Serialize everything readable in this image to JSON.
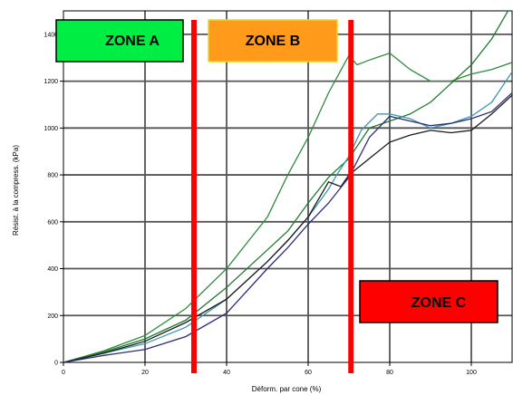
{
  "chart_data": {
    "type": "line",
    "xlabel": "Déform. par cone (%)",
    "ylabel": "Résist. à la compress. (kPa)",
    "xlim": [
      0,
      110
    ],
    "ylim": [
      0,
      1500
    ],
    "x_ticks": [
      0,
      20,
      40,
      60,
      80,
      100
    ],
    "x_tick_labels": [
      "0",
      "20",
      "40",
      "60",
      "80",
      "100"
    ],
    "y_ticks": [
      0,
      200,
      400,
      600,
      800,
      1000,
      1200,
      1400
    ],
    "y_tick_labels": [
      "0",
      "200",
      "400",
      "600",
      "800",
      "1000",
      "1200",
      "1400"
    ],
    "grid": true,
    "series": [
      {
        "color": "#2e8b3a",
        "x": [
          0,
          10,
          20,
          30,
          40,
          45,
          50,
          55,
          60,
          65,
          70,
          72,
          75,
          80,
          85,
          90,
          95,
          100,
          105,
          110
        ],
        "y": [
          0,
          50,
          115,
          230,
          400,
          510,
          620,
          800,
          960,
          1150,
          1310,
          1270,
          1290,
          1320,
          1250,
          1200,
          1200,
          1230,
          1250,
          1280
        ]
      },
      {
        "color": "#1f7a2e",
        "x": [
          0,
          10,
          20,
          30,
          40,
          50,
          55,
          60,
          65,
          70,
          75,
          80,
          85,
          90,
          95,
          100,
          105,
          110
        ],
        "y": [
          0,
          45,
          100,
          180,
          320,
          480,
          560,
          680,
          790,
          870,
          1000,
          1030,
          1060,
          1110,
          1190,
          1270,
          1380,
          1530
        ]
      },
      {
        "color": "#3a9aa8",
        "x": [
          0,
          10,
          20,
          30,
          40,
          50,
          55,
          60,
          65,
          67,
          70,
          73,
          77,
          80,
          85,
          90,
          95,
          100,
          105,
          110
        ],
        "y": [
          0,
          40,
          80,
          150,
          270,
          430,
          520,
          620,
          740,
          800,
          880,
          990,
          1060,
          1060,
          1040,
          1000,
          1020,
          1050,
          1110,
          1240
        ]
      },
      {
        "color": "#1a1a1a",
        "x": [
          0,
          10,
          20,
          30,
          40,
          50,
          55,
          60,
          65,
          68,
          70,
          75,
          80,
          85,
          90,
          95,
          100,
          105,
          110
        ],
        "y": [
          0,
          40,
          90,
          170,
          270,
          430,
          520,
          620,
          770,
          750,
          800,
          870,
          940,
          970,
          990,
          980,
          990,
          1060,
          1140
        ]
      },
      {
        "color": "#2b2b7a",
        "x": [
          0,
          10,
          20,
          30,
          40,
          50,
          55,
          60,
          65,
          70,
          75,
          80,
          85,
          90,
          95,
          100,
          105,
          110
        ],
        "y": [
          0,
          30,
          55,
          110,
          210,
          400,
          490,
          590,
          680,
          790,
          960,
          1050,
          1030,
          1010,
          1020,
          1040,
          1070,
          1150
        ]
      }
    ],
    "annotations": {
      "zone_a": "ZONE A",
      "zone_b": "ZONE B",
      "zone_c": "ZONE C",
      "zone_a_color": "#00ee44",
      "zone_b_color": "#ff9a1a",
      "zone_c_color": "#ff0000",
      "divider_color": "#ff0000",
      "divider_x": [
        32,
        70.5
      ]
    }
  }
}
